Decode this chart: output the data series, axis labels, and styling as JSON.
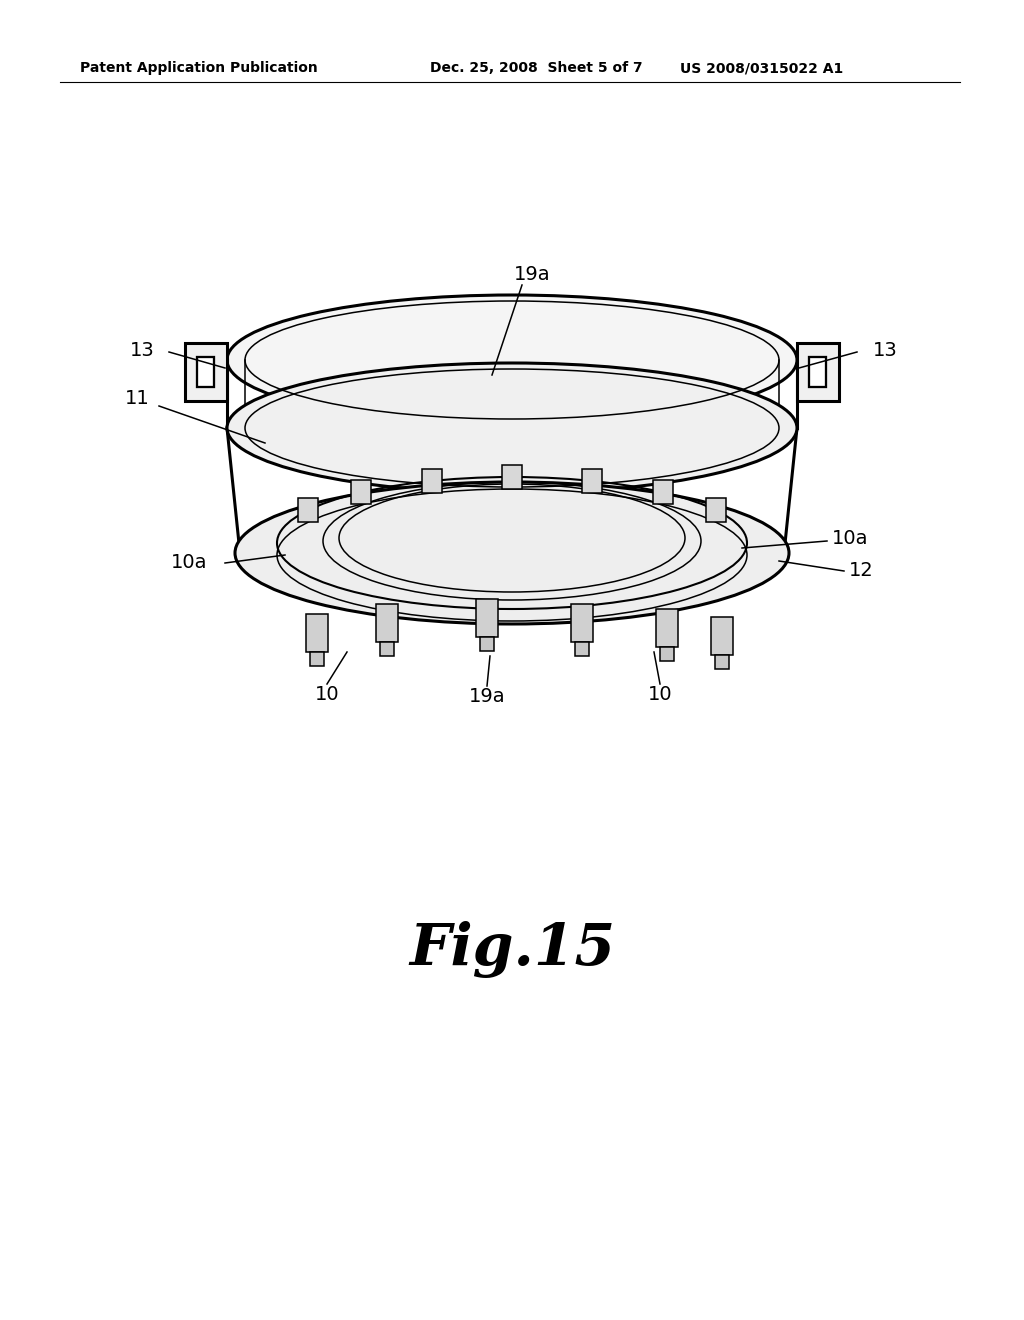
{
  "background_color": "#ffffff",
  "header_left": "Patent Application Publication",
  "header_middle": "Dec. 25, 2008  Sheet 5 of 7",
  "header_right": "US 2008/0315022 A1",
  "fig_label": "Fig.15",
  "fig_label_fontsize": 42
}
